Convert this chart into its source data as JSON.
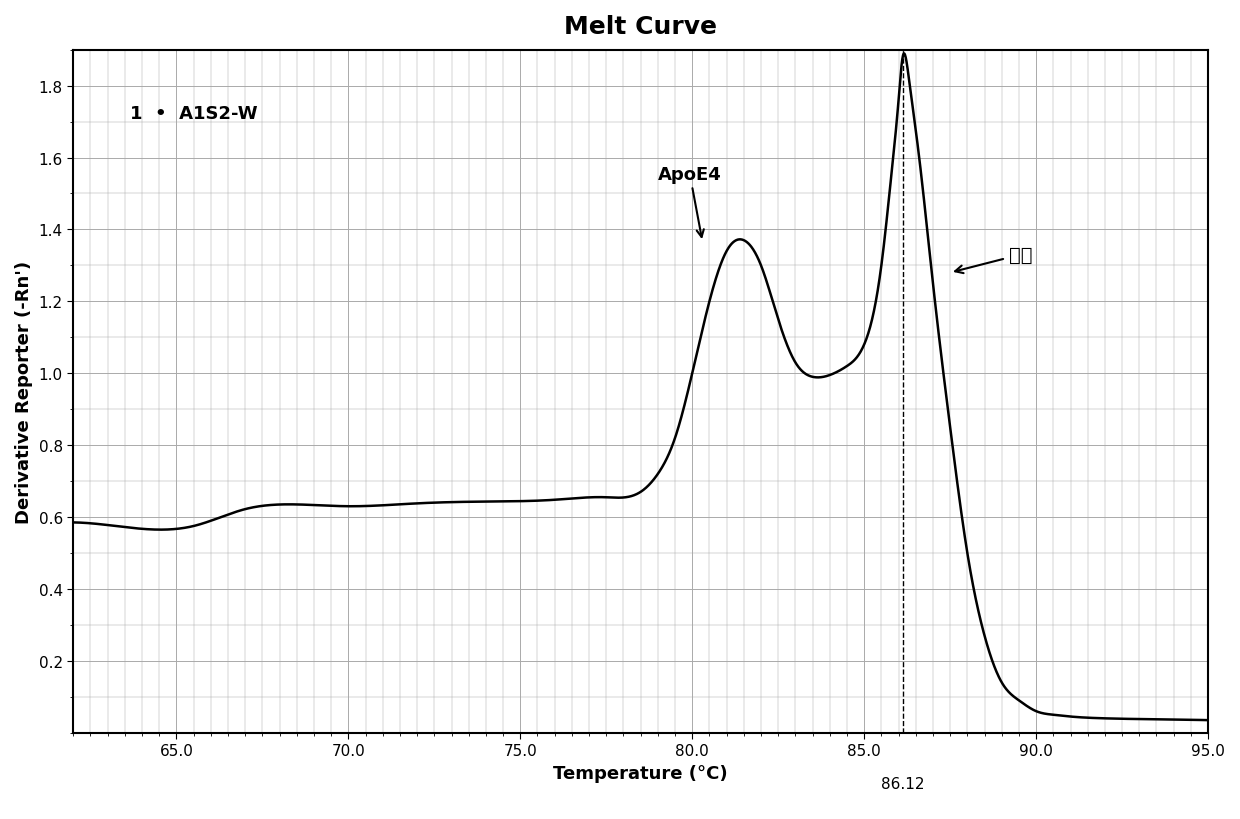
{
  "title": "Melt Curve",
  "xlabel": "Temperature (°C)",
  "ylabel": "Derivative Reporter (-Rn')",
  "xlim": [
    62,
    95.0
  ],
  "ylim": [
    0,
    1.9
  ],
  "xticks": [
    65.0,
    70.0,
    75.0,
    80.0,
    85.0,
    90.0,
    95.0
  ],
  "yticks": [
    0.2,
    0.4,
    0.6,
    0.8,
    1.0,
    1.2,
    1.4,
    1.6,
    1.8
  ],
  "vline_x": 86.12,
  "vline_label": "86.12",
  "legend_text": "1  •  A1S2-W",
  "annotation_apoe4": "ApoE4",
  "annotation_neican": "内参",
  "line_color": "#000000",
  "background_color": "#ffffff",
  "grid_color": "#aaaaaa",
  "title_fontsize": 18,
  "label_fontsize": 13,
  "tick_fontsize": 11
}
